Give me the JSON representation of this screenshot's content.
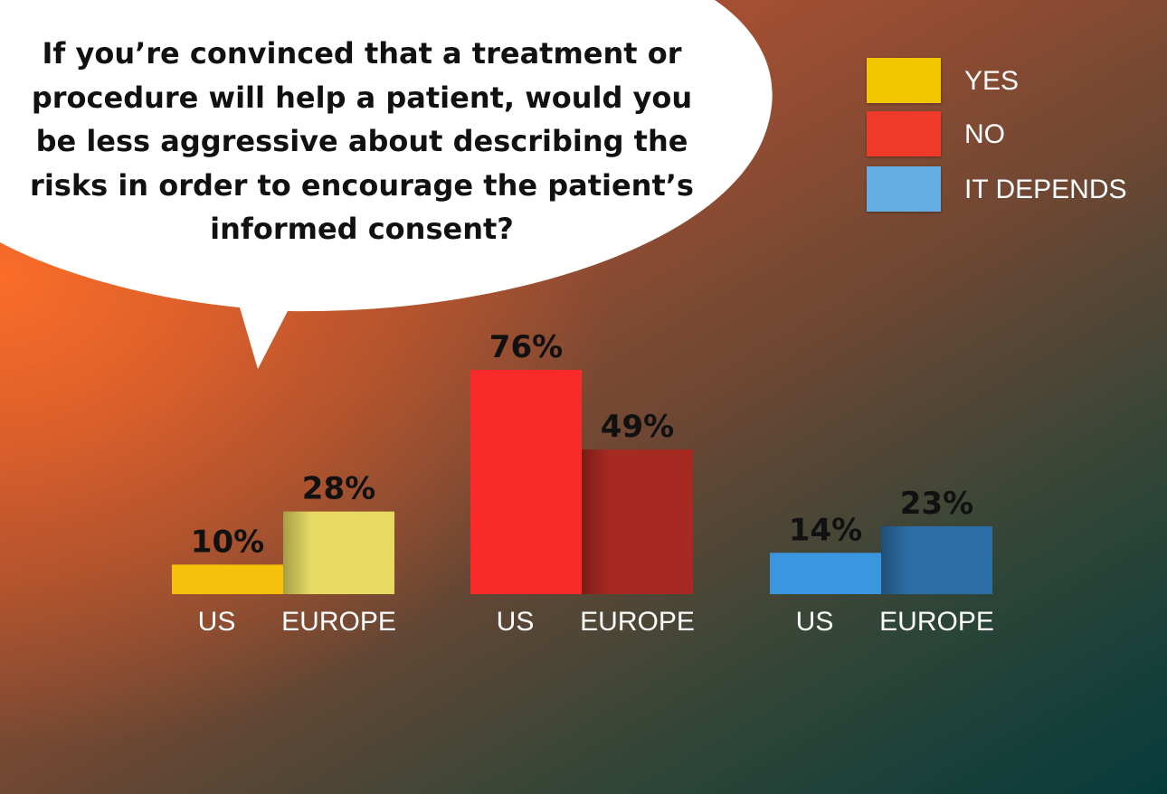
{
  "question": "If you’re convinced that a treatment or procedure will help a patient, would you be less aggressive about describing the risks in order to encourage the patient’s informed consent?",
  "legend": [
    {
      "label": "YES",
      "color": "#f3c702"
    },
    {
      "label": "NO",
      "color": "#ef3a29"
    },
    {
      "label": "IT DEPENDS",
      "color": "#64aee5"
    }
  ],
  "chart_data": {
    "type": "bar",
    "title": "If you’re convinced that a treatment or procedure will help a patient, would you be less aggressive about describing the risks in order to encourage the patient’s informed consent?",
    "categories": [
      "US",
      "EUROPE"
    ],
    "series": [
      {
        "name": "YES",
        "values": [
          10,
          28
        ],
        "colors": [
          "#f6c00b",
          "#e6da63"
        ]
      },
      {
        "name": "NO",
        "values": [
          76,
          49
        ],
        "colors": [
          "#fb2a2a",
          "#a72a22"
        ]
      },
      {
        "name": "IT DEPENDS",
        "values": [
          14,
          23
        ],
        "colors": [
          "#3b96e0",
          "#2b6ea6"
        ]
      }
    ],
    "data_labels": [
      [
        "10%",
        "28%"
      ],
      [
        "76%",
        "49%"
      ],
      [
        "14%",
        "23%"
      ]
    ],
    "ylim": [
      0,
      100
    ],
    "grid": false,
    "legend_position": "top-right"
  }
}
